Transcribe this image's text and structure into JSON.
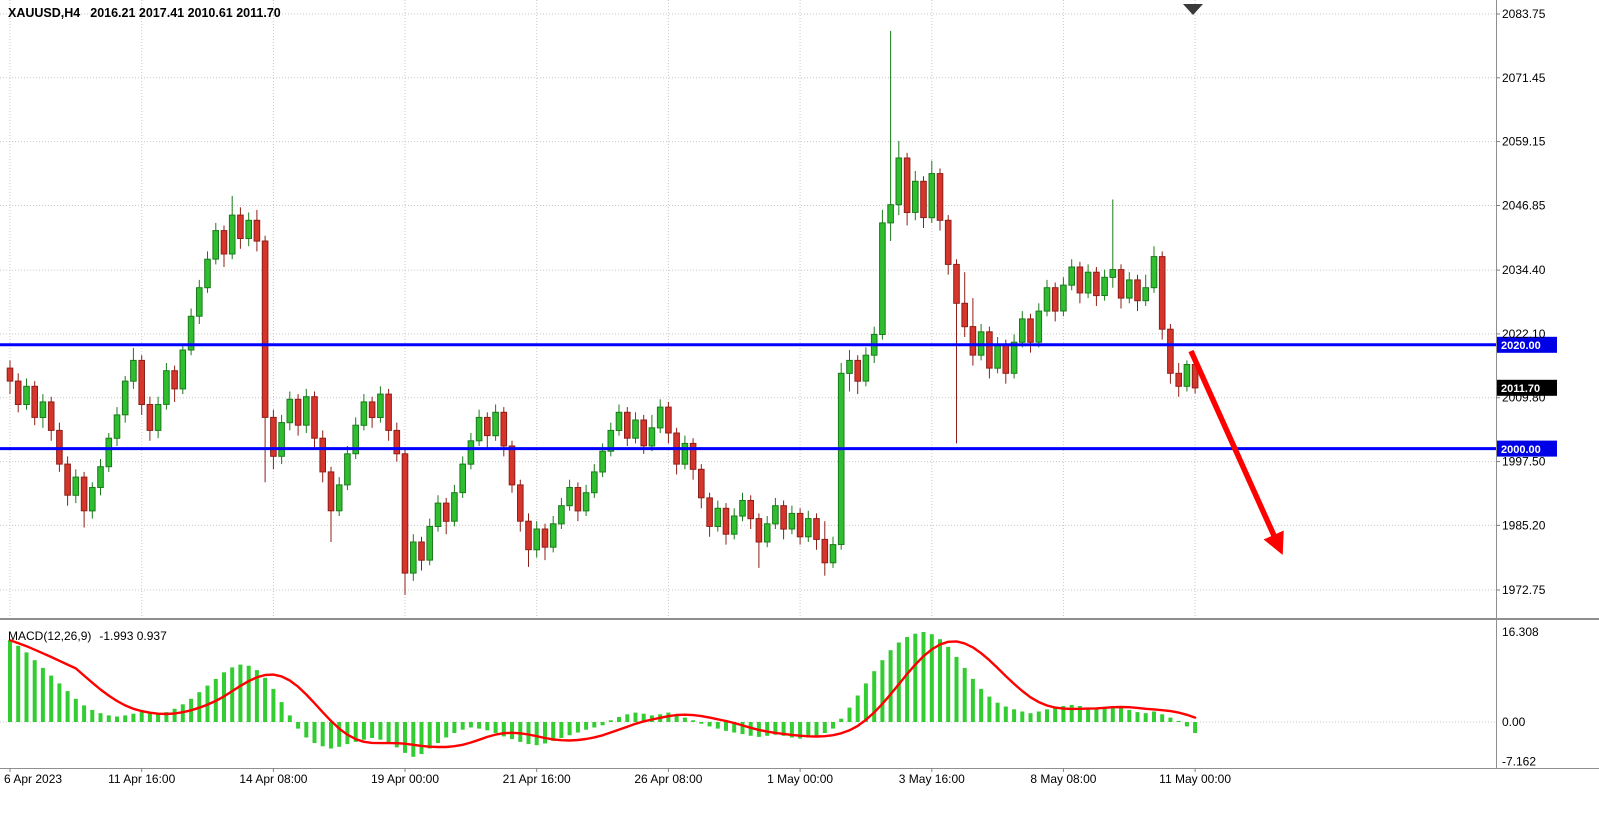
{
  "header": {
    "symbol_period": "XAUUSD,H4",
    "ohlc_text": "2016.21 2017.41 2010.61 2011.70"
  },
  "colors": {
    "bull": "#2FBE2F",
    "bear": "#D6352C",
    "bull_border": "#1B7A1B",
    "bear_border": "#8E1F18",
    "macd_hist": "#33CC33",
    "macd_signal": "#FF0000",
    "level_line": "#0000FF",
    "arrow": "#FF0000",
    "tag_level_bg": "#0000E6",
    "tag_last_bg": "#000000",
    "grid": "#C9C9C9"
  },
  "chart_data": [
    {
      "type": "candlestick",
      "title": "XAUUSD,H4",
      "symbol": "XAUUSD",
      "timeframe": "H4",
      "last_candle": {
        "open": 2016.21,
        "high": 2017.41,
        "low": 2010.61,
        "close": 2011.7
      },
      "ylim": [
        1967.3,
        2086.5
      ],
      "price_ticks": [
        {
          "label": "2083.75",
          "value": 2083.75
        },
        {
          "label": "2071.45",
          "value": 2071.45
        },
        {
          "label": "2059.15",
          "value": 2059.15
        },
        {
          "label": "2046.85",
          "value": 2046.85
        },
        {
          "label": "2034.40",
          "value": 2034.4
        },
        {
          "label": "2022.10",
          "value": 2022.1
        },
        {
          "label": "2009.80",
          "value": 2009.8
        },
        {
          "label": "1997.50",
          "value": 1997.5
        },
        {
          "label": "1985.20",
          "value": 1985.2
        },
        {
          "label": "1972.75",
          "value": 1972.75
        }
      ],
      "time_ticks": [
        {
          "label": "6 Apr 2023",
          "bar": 0
        },
        {
          "label": "11 Apr 16:00",
          "bar": 16
        },
        {
          "label": "14 Apr 08:00",
          "bar": 32
        },
        {
          "label": "19 Apr 00:00",
          "bar": 48
        },
        {
          "label": "21 Apr 16:00",
          "bar": 64
        },
        {
          "label": "26 Apr 08:00",
          "bar": 80
        },
        {
          "label": "1 May 00:00",
          "bar": 96
        },
        {
          "label": "3 May 16:00",
          "bar": 112
        },
        {
          "label": "8 May 08:00",
          "bar": 128
        },
        {
          "label": "11 May 00:00",
          "bar": 144
        }
      ],
      "levels": [
        {
          "label": "2020.00",
          "value": 2020.0
        },
        {
          "label": "2000.00",
          "value": 2000.0
        }
      ],
      "last_price_tag": {
        "label": "2011.70",
        "value": 2011.7
      },
      "annotation": {
        "shape": "trend-arrow",
        "direction": "down-right",
        "color": "#FF0000"
      },
      "candles_ohlc": [
        [
          2015.5,
          2017.0,
          2010.5,
          2013.0
        ],
        [
          2013.0,
          2014.5,
          2007.0,
          2008.5
        ],
        [
          2008.5,
          2013.5,
          2007.5,
          2012.0
        ],
        [
          2012.0,
          2013.0,
          2004.5,
          2006.0
        ],
        [
          2006.0,
          2010.5,
          2004.0,
          2009.0
        ],
        [
          2009.0,
          2010.0,
          2001.5,
          2003.5
        ],
        [
          2003.5,
          2005.0,
          1995.5,
          1997.0
        ],
        [
          1997.0,
          1998.5,
          1989.0,
          1991.0
        ],
        [
          1991.0,
          1996.0,
          1989.5,
          1994.5
        ],
        [
          1994.5,
          1995.5,
          1984.8,
          1988.0
        ],
        [
          1988.0,
          1993.5,
          1986.5,
          1992.5
        ],
        [
          1992.5,
          1998.0,
          1991.0,
          1996.5
        ],
        [
          1996.5,
          2003.0,
          1995.5,
          2002.0
        ],
        [
          2002.0,
          2008.0,
          2000.5,
          2006.5
        ],
        [
          2006.5,
          2014.0,
          2005.0,
          2013.0
        ],
        [
          2013.0,
          2019.4,
          2011.5,
          2017.0
        ],
        [
          2017.0,
          2018.0,
          2006.5,
          2008.5
        ],
        [
          2008.5,
          2010.0,
          2001.5,
          2003.5
        ],
        [
          2003.5,
          2010.0,
          2002.0,
          2008.5
        ],
        [
          2008.5,
          2016.5,
          2007.5,
          2015.0
        ],
        [
          2015.0,
          2016.0,
          2009.0,
          2011.5
        ],
        [
          2011.5,
          2020.0,
          2010.5,
          2019.0
        ],
        [
          2019.0,
          2027.0,
          2018.0,
          2025.5
        ],
        [
          2025.5,
          2032.5,
          2024.0,
          2031.0
        ],
        [
          2031.0,
          2038.0,
          2030.0,
          2036.5
        ],
        [
          2036.5,
          2043.5,
          2035.5,
          2042.0
        ],
        [
          2042.0,
          2043.0,
          2035.0,
          2037.5
        ],
        [
          2037.5,
          2048.7,
          2036.5,
          2045.0
        ],
        [
          2045.0,
          2046.5,
          2038.5,
          2040.5
        ],
        [
          2040.5,
          2045.5,
          2039.0,
          2044.0
        ],
        [
          2044.0,
          2046.0,
          2038.0,
          2040.0
        ],
        [
          2040.0,
          2041.0,
          1993.5,
          2006.0
        ],
        [
          2006.0,
          2007.5,
          1996.0,
          1998.5
        ],
        [
          1998.5,
          2006.5,
          1997.0,
          2005.0
        ],
        [
          2005.0,
          2011.0,
          2003.5,
          2009.5
        ],
        [
          2009.5,
          2010.5,
          2002.5,
          2004.5
        ],
        [
          2004.5,
          2011.5,
          2003.0,
          2010.0
        ],
        [
          2010.0,
          2011.0,
          2000.0,
          2002.0
        ],
        [
          2002.0,
          2003.5,
          1993.5,
          1995.5
        ],
        [
          1995.5,
          1996.5,
          1982.0,
          1988.0
        ],
        [
          1988.0,
          1994.5,
          1987.0,
          1993.0
        ],
        [
          1993.0,
          2000.5,
          1992.0,
          1999.0
        ],
        [
          1999.0,
          2006.0,
          1998.0,
          2004.5
        ],
        [
          2004.5,
          2010.5,
          2003.5,
          2009.0
        ],
        [
          2009.0,
          2010.0,
          2004.0,
          2006.0
        ],
        [
          2006.0,
          2012.0,
          2005.0,
          2010.5
        ],
        [
          2010.5,
          2011.5,
          2001.5,
          2003.5
        ],
        [
          2003.5,
          2005.0,
          1997.5,
          1999.0
        ],
        [
          1999.0,
          2000.0,
          1971.8,
          1976.0
        ],
        [
          1976.0,
          1983.5,
          1974.5,
          1982.0
        ],
        [
          1982.0,
          1983.0,
          1976.5,
          1978.5
        ],
        [
          1978.5,
          1986.5,
          1977.5,
          1985.0
        ],
        [
          1985.0,
          1991.0,
          1984.0,
          1989.5
        ],
        [
          1989.5,
          1990.5,
          1983.5,
          1986.0
        ],
        [
          1986.0,
          1993.0,
          1985.0,
          1991.5
        ],
        [
          1991.5,
          1998.5,
          1990.5,
          1997.0
        ],
        [
          1997.0,
          2003.0,
          1996.0,
          2001.5
        ],
        [
          2001.5,
          2007.5,
          2000.5,
          2006.0
        ],
        [
          2006.0,
          2007.0,
          2000.0,
          2002.5
        ],
        [
          2002.5,
          2008.5,
          2001.5,
          2007.0
        ],
        [
          2007.0,
          2008.0,
          1998.5,
          2000.5
        ],
        [
          2000.5,
          2001.5,
          1991.5,
          1993.0
        ],
        [
          1993.0,
          1994.0,
          1984.0,
          1986.0
        ],
        [
          1986.0,
          1987.5,
          1977.2,
          1980.5
        ],
        [
          1980.5,
          1986.0,
          1979.0,
          1984.5
        ],
        [
          1984.5,
          1985.5,
          1978.5,
          1981.0
        ],
        [
          1981.0,
          1987.0,
          1980.0,
          1985.5
        ],
        [
          1985.5,
          1990.5,
          1984.5,
          1989.0
        ],
        [
          1989.0,
          1994.0,
          1988.0,
          1992.5
        ],
        [
          1992.5,
          1993.5,
          1986.0,
          1988.0
        ],
        [
          1988.0,
          1993.0,
          1987.0,
          1991.5
        ],
        [
          1991.5,
          1997.0,
          1990.5,
          1995.5
        ],
        [
          1995.5,
          2001.0,
          1994.5,
          1999.5
        ],
        [
          1999.5,
          2005.0,
          1998.5,
          2003.5
        ],
        [
          2003.5,
          2008.5,
          2002.5,
          2007.0
        ],
        [
          2007.0,
          2008.0,
          2000.5,
          2002.0
        ],
        [
          2002.0,
          2007.0,
          2001.0,
          2005.5
        ],
        [
          2005.5,
          2006.5,
          1999.0,
          2000.5
        ],
        [
          2000.5,
          2006.5,
          1999.5,
          2004.0
        ],
        [
          2004.0,
          2009.5,
          2003.0,
          2008.0
        ],
        [
          2008.0,
          2009.0,
          2001.0,
          2003.0
        ],
        [
          2003.0,
          2004.0,
          1995.0,
          1997.0
        ],
        [
          1997.0,
          2002.5,
          1996.0,
          2001.0
        ],
        [
          2001.0,
          2002.0,
          1994.0,
          1996.0
        ],
        [
          1996.0,
          1997.0,
          1988.5,
          1990.5
        ],
        [
          1990.5,
          1991.5,
          1983.0,
          1985.0
        ],
        [
          1985.0,
          1990.0,
          1984.0,
          1988.5
        ],
        [
          1988.5,
          1989.5,
          1981.5,
          1983.5
        ],
        [
          1983.5,
          1988.5,
          1982.5,
          1987.0
        ],
        [
          1987.0,
          1991.5,
          1986.0,
          1990.0
        ],
        [
          1990.0,
          1991.0,
          1984.5,
          1986.5
        ],
        [
          1986.5,
          1987.5,
          1977.0,
          1982.0
        ],
        [
          1982.0,
          1987.0,
          1981.0,
          1985.5
        ],
        [
          1985.5,
          1990.5,
          1984.5,
          1989.0
        ],
        [
          1989.0,
          1990.0,
          1982.5,
          1984.5
        ],
        [
          1984.5,
          1989.0,
          1983.5,
          1987.5
        ],
        [
          1987.5,
          1988.5,
          1981.5,
          1983.0
        ],
        [
          1983.0,
          1988.0,
          1982.0,
          1986.5
        ],
        [
          1986.5,
          1987.5,
          1980.5,
          1982.5
        ],
        [
          1982.5,
          1986.0,
          1975.5,
          1978.0
        ],
        [
          1978.0,
          1983.0,
          1977.0,
          1981.5
        ],
        [
          1981.5,
          2016.5,
          1980.5,
          2014.5
        ],
        [
          2014.5,
          2019.0,
          2011.0,
          2017.0
        ],
        [
          2017.0,
          2018.0,
          2010.5,
          2013.0
        ],
        [
          2013.0,
          2019.5,
          2012.0,
          2018.0
        ],
        [
          2018.0,
          2023.5,
          2016.5,
          2022.0
        ],
        [
          2022.0,
          2046.0,
          2021.0,
          2043.5
        ],
        [
          2043.5,
          2080.5,
          2040.0,
          2047.0
        ],
        [
          2047.0,
          2059.3,
          2045.0,
          2056.0
        ],
        [
          2056.0,
          2057.0,
          2043.0,
          2045.5
        ],
        [
          2045.5,
          2053.5,
          2044.0,
          2051.5
        ],
        [
          2051.5,
          2052.5,
          2042.5,
          2044.5
        ],
        [
          2044.5,
          2055.5,
          2043.5,
          2053.0
        ],
        [
          2053.0,
          2054.0,
          2042.0,
          2044.0
        ],
        [
          2044.0,
          2045.0,
          2033.5,
          2035.5
        ],
        [
          2035.5,
          2036.5,
          2001.0,
          2028.0
        ],
        [
          2028.0,
          2034.0,
          2021.5,
          2023.5
        ],
        [
          2023.5,
          2029.0,
          2016.0,
          2018.0
        ],
        [
          2018.0,
          2024.0,
          2017.0,
          2022.5
        ],
        [
          2022.5,
          2023.5,
          2013.5,
          2015.5
        ],
        [
          2015.5,
          2021.5,
          2014.5,
          2020.0
        ],
        [
          2020.0,
          2021.0,
          2012.5,
          2014.5
        ],
        [
          2014.5,
          2022.0,
          2013.5,
          2020.5
        ],
        [
          2020.5,
          2026.5,
          2019.5,
          2025.0
        ],
        [
          2025.0,
          2026.0,
          2018.5,
          2020.5
        ],
        [
          2020.5,
          2028.0,
          2019.5,
          2026.5
        ],
        [
          2026.5,
          2032.5,
          2025.5,
          2031.0
        ],
        [
          2031.0,
          2032.0,
          2024.5,
          2026.5
        ],
        [
          2026.5,
          2033.0,
          2025.5,
          2031.5
        ],
        [
          2031.5,
          2036.5,
          2030.5,
          2035.0
        ],
        [
          2035.0,
          2036.0,
          2028.0,
          2030.0
        ],
        [
          2030.0,
          2035.5,
          2029.0,
          2034.0
        ],
        [
          2034.0,
          2035.0,
          2027.5,
          2029.5
        ],
        [
          2029.5,
          2034.5,
          2028.5,
          2033.0
        ],
        [
          2033.0,
          2048.0,
          2031.0,
          2034.5
        ],
        [
          2034.5,
          2035.5,
          2027.0,
          2029.0
        ],
        [
          2029.0,
          2034.0,
          2028.0,
          2032.5
        ],
        [
          2032.5,
          2033.5,
          2026.5,
          2028.5
        ],
        [
          2028.5,
          2033.5,
          2027.5,
          2031.0
        ],
        [
          2031.0,
          2039.0,
          2030.0,
          2037.0
        ],
        [
          2037.0,
          2038.0,
          2021.0,
          2023.0
        ],
        [
          2023.0,
          2024.0,
          2012.5,
          2014.5
        ],
        [
          2014.5,
          2016.5,
          2010.0,
          2012.0
        ],
        [
          2012.0,
          2017.0,
          2011.0,
          2016.2
        ],
        [
          2016.2,
          2017.4,
          2010.6,
          2011.7
        ]
      ]
    },
    {
      "type": "bar",
      "title": "MACD(12,26,9)",
      "current_values_text": "-1.993 0.937",
      "current_values": {
        "macd": "-1.993",
        "signal": "0.937"
      },
      "signal_period": 9,
      "ylim": [
        -7.162,
        16.308
      ],
      "ticks": [
        {
          "label": "16.308",
          "value": 16.308
        },
        {
          "label": "0.00",
          "value": 0
        },
        {
          "label": "-7.162",
          "value": -7.162
        }
      ],
      "values": [
        14.8,
        13.8,
        12.6,
        11.2,
        9.8,
        8.4,
        7.0,
        5.6,
        4.2,
        3.0,
        2.2,
        1.6,
        1.2,
        1.0,
        1.2,
        1.5,
        1.8,
        1.6,
        1.4,
        1.8,
        2.4,
        3.2,
        4.2,
        5.4,
        6.6,
        7.8,
        9.0,
        9.9,
        10.4,
        10.2,
        9.4,
        8.0,
        6.0,
        3.6,
        1.2,
        -1.2,
        -2.8,
        -3.8,
        -4.4,
        -4.8,
        -4.5,
        -4.0,
        -3.6,
        -3.2,
        -2.9,
        -3.2,
        -3.8,
        -4.6,
        -5.6,
        -6.3,
        -5.8,
        -4.8,
        -3.8,
        -2.8,
        -2.0,
        -1.4,
        -1.0,
        -1.2,
        -1.5,
        -2.0,
        -2.6,
        -3.1,
        -3.6,
        -4.0,
        -4.2,
        -3.9,
        -3.4,
        -2.9,
        -2.4,
        -1.9,
        -1.4,
        -1.0,
        -0.6,
        0.3,
        0.9,
        1.4,
        1.7,
        1.5,
        1.2,
        1.4,
        1.7,
        1.3,
        0.8,
        0.3,
        -0.3,
        -0.8,
        -1.2,
        -1.6,
        -1.9,
        -2.2,
        -2.5,
        -2.7,
        -2.5,
        -2.3,
        -2.5,
        -2.8,
        -3.0,
        -2.8,
        -2.5,
        -2.0,
        -1.2,
        0.6,
        2.6,
        4.8,
        7.0,
        9.2,
        11.2,
        13.0,
        14.4,
        15.4,
        16.0,
        16.3,
        15.9,
        15.0,
        13.6,
        11.8,
        9.8,
        7.8,
        6.0,
        4.6,
        3.5,
        2.8,
        2.3,
        1.9,
        1.6,
        1.9,
        2.3,
        2.6,
        2.9,
        3.1,
        2.9,
        2.6,
        2.3,
        2.6,
        2.9,
        2.6,
        2.2,
        1.8,
        1.6,
        1.9,
        1.4,
        0.8,
        0.2,
        -0.8,
        -1.993
      ]
    }
  ]
}
